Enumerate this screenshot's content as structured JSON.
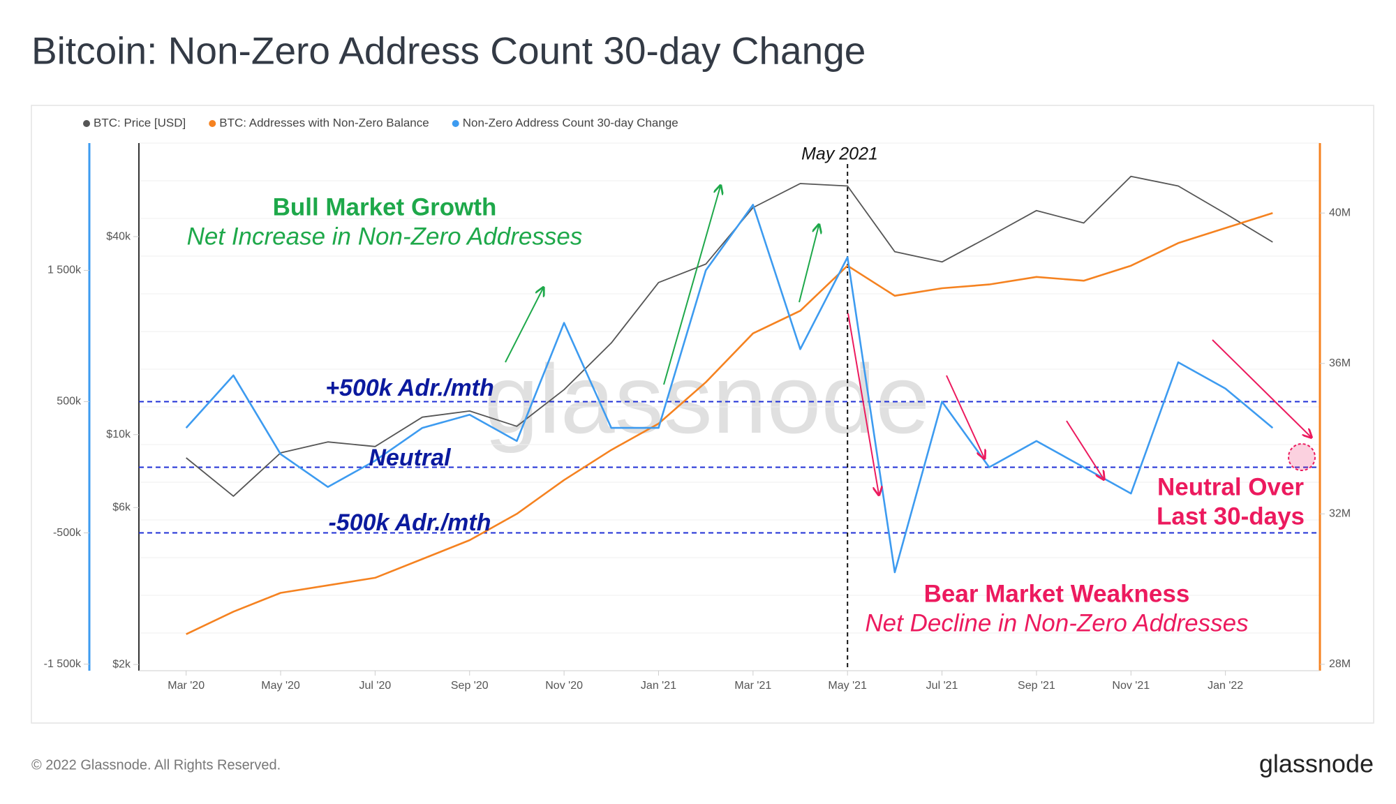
{
  "chart_data": {
    "type": "line",
    "title": "Bitcoin: Non-Zero Address Count 30-day Change",
    "x": [
      "2020-03",
      "2020-04",
      "2020-05",
      "2020-06",
      "2020-07",
      "2020-08",
      "2020-09",
      "2020-10",
      "2020-11",
      "2020-12",
      "2021-01",
      "2021-02",
      "2021-03",
      "2021-04",
      "2021-05",
      "2021-06",
      "2021-07",
      "2021-08",
      "2021-09",
      "2021-10",
      "2021-11",
      "2021-12",
      "2022-01",
      "2022-02"
    ],
    "xlim": [
      "2020-02",
      "2022-03"
    ],
    "xticks": [
      {
        "value": "2020-03",
        "label": "Mar '20"
      },
      {
        "value": "2020-05",
        "label": "May '20"
      },
      {
        "value": "2020-07",
        "label": "Jul '20"
      },
      {
        "value": "2020-09",
        "label": "Sep '20"
      },
      {
        "value": "2020-11",
        "label": "Nov '20"
      },
      {
        "value": "2021-01",
        "label": "Jan '21"
      },
      {
        "value": "2021-03",
        "label": "Mar '21"
      },
      {
        "value": "2021-05",
        "label": "May '21"
      },
      {
        "value": "2021-07",
        "label": "Jul '21"
      },
      {
        "value": "2021-09",
        "label": "Sep '21"
      },
      {
        "value": "2021-11",
        "label": "Nov '21"
      },
      {
        "value": "2022-01",
        "label": "Jan '22"
      }
    ],
    "ylim": [
      -1550000,
      2470000
    ],
    "yticks": [
      {
        "value": -1500000,
        "label": "-1 500k"
      },
      {
        "value": -500000,
        "label": "-500k"
      },
      {
        "value": 500000,
        "label": "500k"
      },
      {
        "value": 1500000,
        "label": "1 500k"
      }
    ],
    "y2lim": [
      1915,
      77000
    ],
    "y2scale": "log",
    "y2ticks": [
      {
        "value": 2000,
        "label": "$2k"
      },
      {
        "value": 6000,
        "label": "$6k"
      },
      {
        "value": 10000,
        "label": "$10k"
      },
      {
        "value": 40000,
        "label": "$40k"
      }
    ],
    "y3lim": [
      27830000,
      41860000
    ],
    "y3ticks": [
      {
        "value": 28000000,
        "label": "28M"
      },
      {
        "value": 32000000,
        "label": "32M"
      },
      {
        "value": 36000000,
        "label": "36M"
      },
      {
        "value": 40000000,
        "label": "40M"
      }
    ],
    "series": [
      {
        "name": "BTC: Price [USD]",
        "color": "#555555",
        "axis": "y2",
        "values": [
          8500,
          6500,
          8800,
          9500,
          9200,
          11300,
          11800,
          10600,
          13700,
          19000,
          29000,
          33000,
          49000,
          58000,
          57000,
          36000,
          33500,
          40000,
          48000,
          44000,
          61000,
          57000,
          47000,
          38500
        ]
      },
      {
        "name": "BTC: Addresses with Non-Zero Balance",
        "color": "#f58220",
        "axis": "y3",
        "values": [
          28800000,
          29400000,
          29900000,
          30100000,
          30300000,
          30800000,
          31300000,
          32000000,
          32900000,
          33700000,
          34400000,
          35500000,
          36800000,
          37400000,
          38600000,
          37800000,
          38000000,
          38100000,
          38300000,
          38200000,
          38600000,
          39200000,
          39600000,
          40000000
        ]
      },
      {
        "name": "Non-Zero Address Count 30-day Change",
        "color": "#3d9bf0",
        "axis": "y",
        "values": [
          300000,
          700000,
          100000,
          -150000,
          50000,
          300000,
          400000,
          200000,
          1100000,
          300000,
          300000,
          1500000,
          2000000,
          900000,
          1600000,
          -800000,
          500000,
          0,
          200000,
          0,
          -200000,
          800000,
          600000,
          300000
        ]
      }
    ],
    "reference_lines": [
      500000,
      0,
      -500000
    ],
    "marker_line": "2021-05",
    "annotations": {
      "marker_label": "May 2021",
      "bull_title": "Bull Market Growth",
      "bull_text": "Net Increase in Non-Zero Addresses",
      "plus_line": "+500k Adr./mth",
      "neutral_line": "Neutral",
      "minus_line": "-500k Adr./mth",
      "bear_title": "Bear Market Weakness",
      "bear_text": "Net Decline in Non-Zero Addresses",
      "recent_1": "Neutral Over",
      "recent_2": "Last 30-days"
    },
    "watermark": "glassnode",
    "footer": "© 2022 Glassnode. All Rights Reserved.",
    "logo": "glassnode"
  }
}
